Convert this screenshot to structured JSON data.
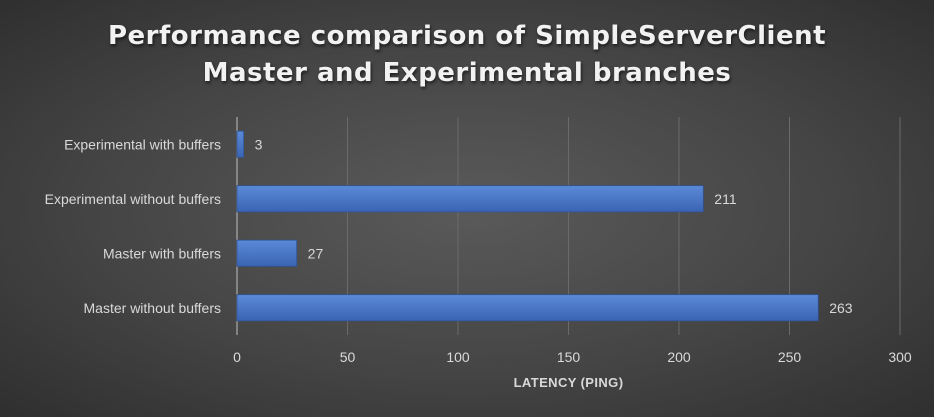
{
  "chart_data": {
    "type": "bar",
    "orientation": "horizontal",
    "title": [
      "Performance comparison of SimpleServerClient",
      "Master and Experimental branches"
    ],
    "xlabel": "LATENCY (PING)",
    "ylabel": "",
    "categories": [
      "Experimental with buffers",
      "Experimental without buffers",
      "Master with buffers",
      "Master without buffers"
    ],
    "values": [
      3,
      211,
      27,
      263
    ],
    "xlim": [
      0,
      300
    ],
    "xticks": [
      0,
      50,
      100,
      150,
      200,
      250,
      300
    ],
    "data_labels": true,
    "grid": "vertical",
    "legend": "none",
    "colors": {
      "bar": "#4472c4",
      "bar_edge": "#2f5597",
      "text": "#d9d9d9",
      "gridline": "#6a6a6a",
      "background": "#4a4a4a"
    }
  }
}
